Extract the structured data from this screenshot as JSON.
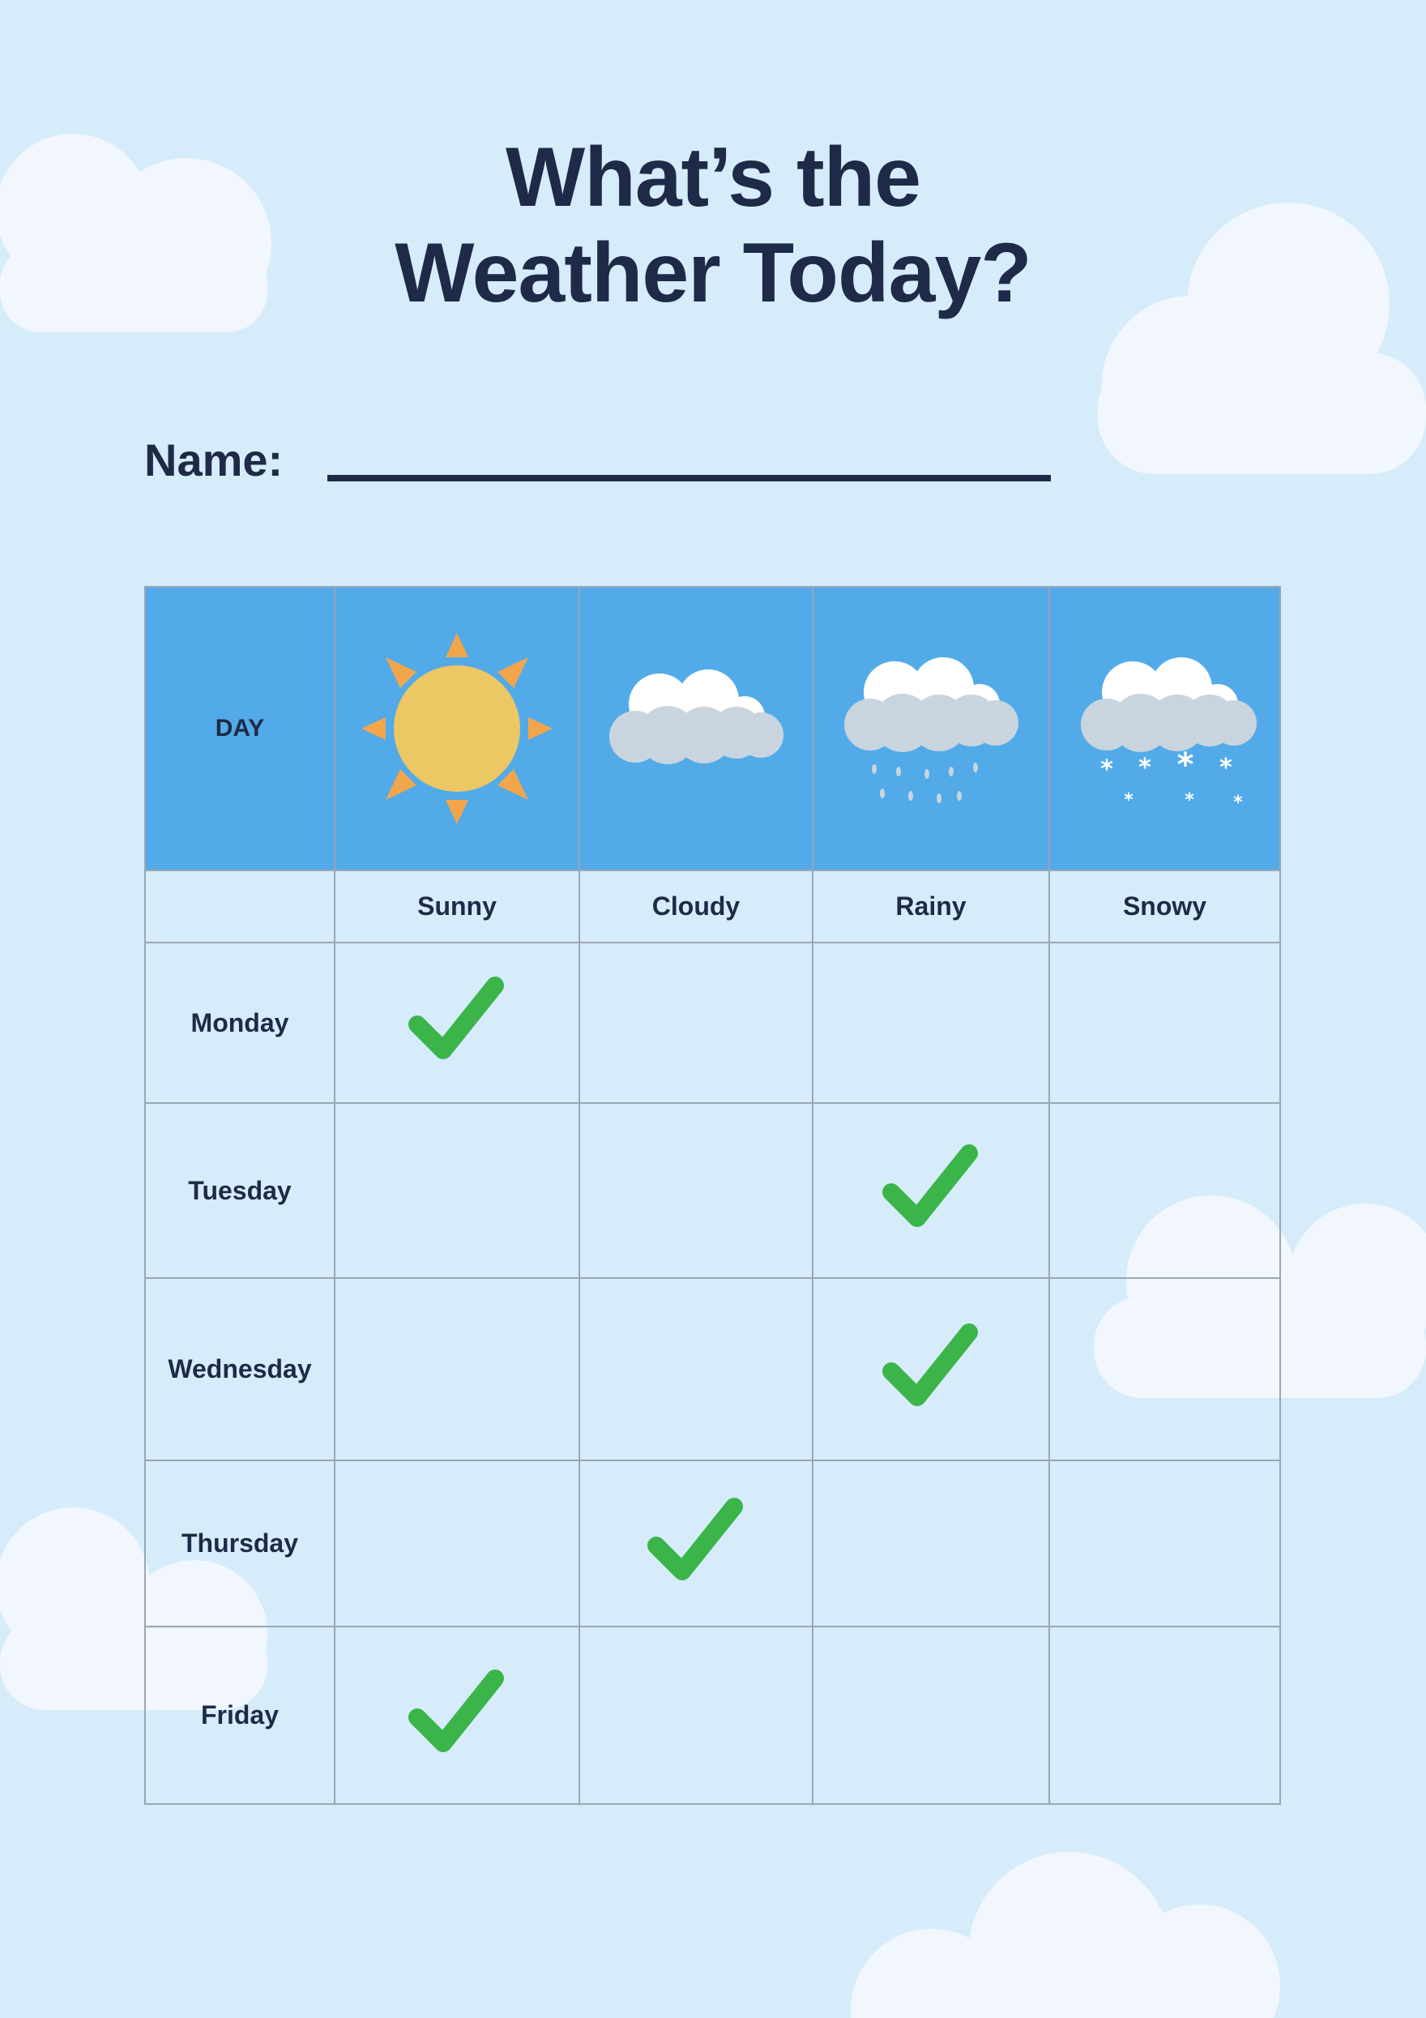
{
  "title_line1": "What’s the",
  "title_line2": "Weather Today?",
  "name_label": "Name:",
  "table": {
    "corner_label": "DAY",
    "columns": [
      {
        "label": "Sunny",
        "icon": "sun-icon"
      },
      {
        "label": "Cloudy",
        "icon": "cloud-icon"
      },
      {
        "label": "Rainy",
        "icon": "rain-cloud-icon"
      },
      {
        "label": "Snowy",
        "icon": "snow-cloud-icon"
      }
    ],
    "rows": [
      {
        "day": "Monday",
        "checked": "Sunny"
      },
      {
        "day": "Tuesday",
        "checked": "Rainy"
      },
      {
        "day": "Wednesday",
        "checked": "Rainy"
      },
      {
        "day": "Thursday",
        "checked": "Cloudy"
      },
      {
        "day": "Friday",
        "checked": "Sunny"
      }
    ]
  },
  "colors": {
    "background": "#d6ecfb",
    "header": "#52abe8",
    "text": "#1e2a47",
    "check": "#3bb54a",
    "sun": "#edc763",
    "sun_rays": "#f2a54a"
  }
}
